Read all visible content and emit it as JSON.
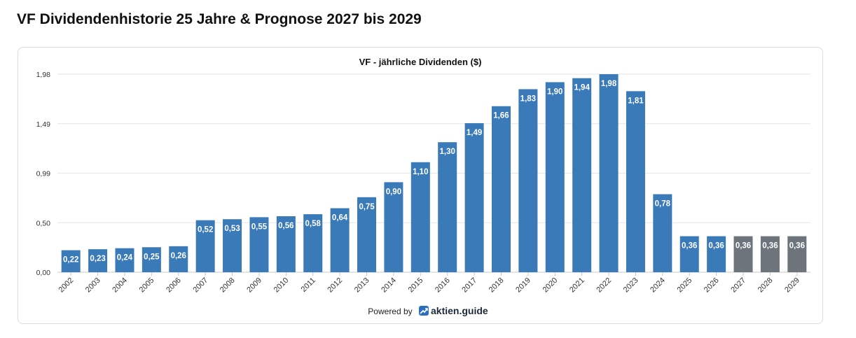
{
  "page": {
    "title": "VF Dividendenhistorie 25 Jahre & Prognose 2027 bis 2029",
    "powered_by": "Powered by",
    "brand": "aktien.guide"
  },
  "colors": {
    "historic": "#3a7ab8",
    "forecast": "#6d747c",
    "grid": "#e6e6e6",
    "label": "#ffffff"
  },
  "chart_data": {
    "type": "bar",
    "title": "VF - jährliche Dividenden ($)",
    "xlabel": "",
    "ylabel": "",
    "ylim": [
      0,
      1.98
    ],
    "yticks": [
      "0,00",
      "0,50",
      "0,99",
      "1,49",
      "1,98"
    ],
    "ytick_values": [
      0,
      0.495,
      0.99,
      1.485,
      1.98
    ],
    "grid": true,
    "categories": [
      "2002",
      "2003",
      "2004",
      "2005",
      "2006",
      "2007",
      "2008",
      "2009",
      "2010",
      "2011",
      "2012",
      "2013",
      "2014",
      "2015",
      "2016",
      "2017",
      "2018",
      "2019",
      "2020",
      "2021",
      "2022",
      "2023",
      "2024",
      "2025",
      "2026",
      "2027",
      "2028",
      "2029"
    ],
    "values": [
      0.22,
      0.23,
      0.24,
      0.25,
      0.26,
      0.52,
      0.53,
      0.55,
      0.56,
      0.58,
      0.64,
      0.75,
      0.9,
      1.1,
      1.3,
      1.49,
      1.66,
      1.83,
      1.9,
      1.94,
      1.98,
      1.81,
      0.78,
      0.36,
      0.36,
      0.36,
      0.36,
      0.36
    ],
    "value_labels": [
      "0,22",
      "0,23",
      "0,24",
      "0,25",
      "0,26",
      "0,52",
      "0,53",
      "0,55",
      "0,56",
      "0,58",
      "0,64",
      "0,75",
      "0,90",
      "1,10",
      "1,30",
      "1,49",
      "1,66",
      "1,83",
      "1,90",
      "1,94",
      "1,98",
      "1,81",
      "0,78",
      "0,36",
      "0,36",
      "0,36",
      "0,36",
      "0,36"
    ],
    "forecast_from": "2027"
  }
}
